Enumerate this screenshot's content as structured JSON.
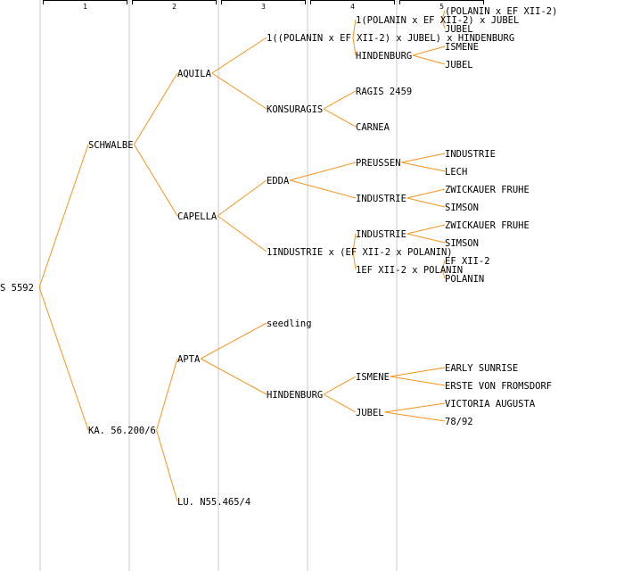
{
  "generations": [
    "1",
    "2",
    "3",
    "4",
    "5"
  ],
  "edge_color": "#f7941d",
  "root": {
    "label": "S 5592",
    "children": [
      {
        "label": "SCHWALBE",
        "children": [
          {
            "label": "AQUILA",
            "children": [
              {
                "label": "1((POLANIN x EF XII-2) x JUBEL) x HINDENBURG",
                "children": [
                  {
                    "label": "1(POLANIN x EF XII-2) x JUBEL",
                    "children": [
                      {
                        "label": "(POLANIN x EF XII-2)"
                      },
                      {
                        "label": "JUBEL"
                      }
                    ]
                  },
                  {
                    "label": "HINDENBURG",
                    "children": [
                      {
                        "label": "ISMENE"
                      },
                      {
                        "label": "JUBEL"
                      }
                    ]
                  }
                ]
              },
              {
                "label": "KONSURAGIS",
                "children": [
                  {
                    "label": "RAGIS 2459"
                  },
                  {
                    "label": "CARNEA"
                  }
                ]
              }
            ]
          },
          {
            "label": "CAPELLA",
            "children": [
              {
                "label": "EDDA",
                "children": [
                  {
                    "label": "PREUSSEN",
                    "children": [
                      {
                        "label": "INDUSTRIE"
                      },
                      {
                        "label": "LECH"
                      }
                    ]
                  },
                  {
                    "label": "INDUSTRIE",
                    "children": [
                      {
                        "label": "ZWICKAUER FRUHE"
                      },
                      {
                        "label": "SIMSON"
                      }
                    ]
                  }
                ]
              },
              {
                "label": "1INDUSTRIE x (EF XII-2 x POLANIN)",
                "children": [
                  {
                    "label": "INDUSTRIE",
                    "children": [
                      {
                        "label": "ZWICKAUER FRUHE"
                      },
                      {
                        "label": "SIMSON"
                      }
                    ]
                  },
                  {
                    "label": "1EF XII-2 x POLANIN",
                    "children": [
                      {
                        "label": "EF XII-2"
                      },
                      {
                        "label": "POLANIN"
                      }
                    ]
                  }
                ]
              }
            ]
          }
        ]
      },
      {
        "label": "KA. 56.200/6",
        "children": [
          {
            "label": "APTA",
            "children": [
              {
                "label": "seedling"
              },
              {
                "label": "HINDENBURG",
                "children": [
                  {
                    "label": "ISMENE",
                    "children": [
                      {
                        "label": "EARLY SUNRISE"
                      },
                      {
                        "label": "ERSTE VON FROMSDORF"
                      }
                    ]
                  },
                  {
                    "label": "JUBEL",
                    "children": [
                      {
                        "label": "VICTORIA AUGUSTA"
                      },
                      {
                        "label": "78/92"
                      }
                    ]
                  }
                ]
              }
            ]
          },
          {
            "label": "LU. N55.465/4"
          }
        ]
      }
    ]
  }
}
